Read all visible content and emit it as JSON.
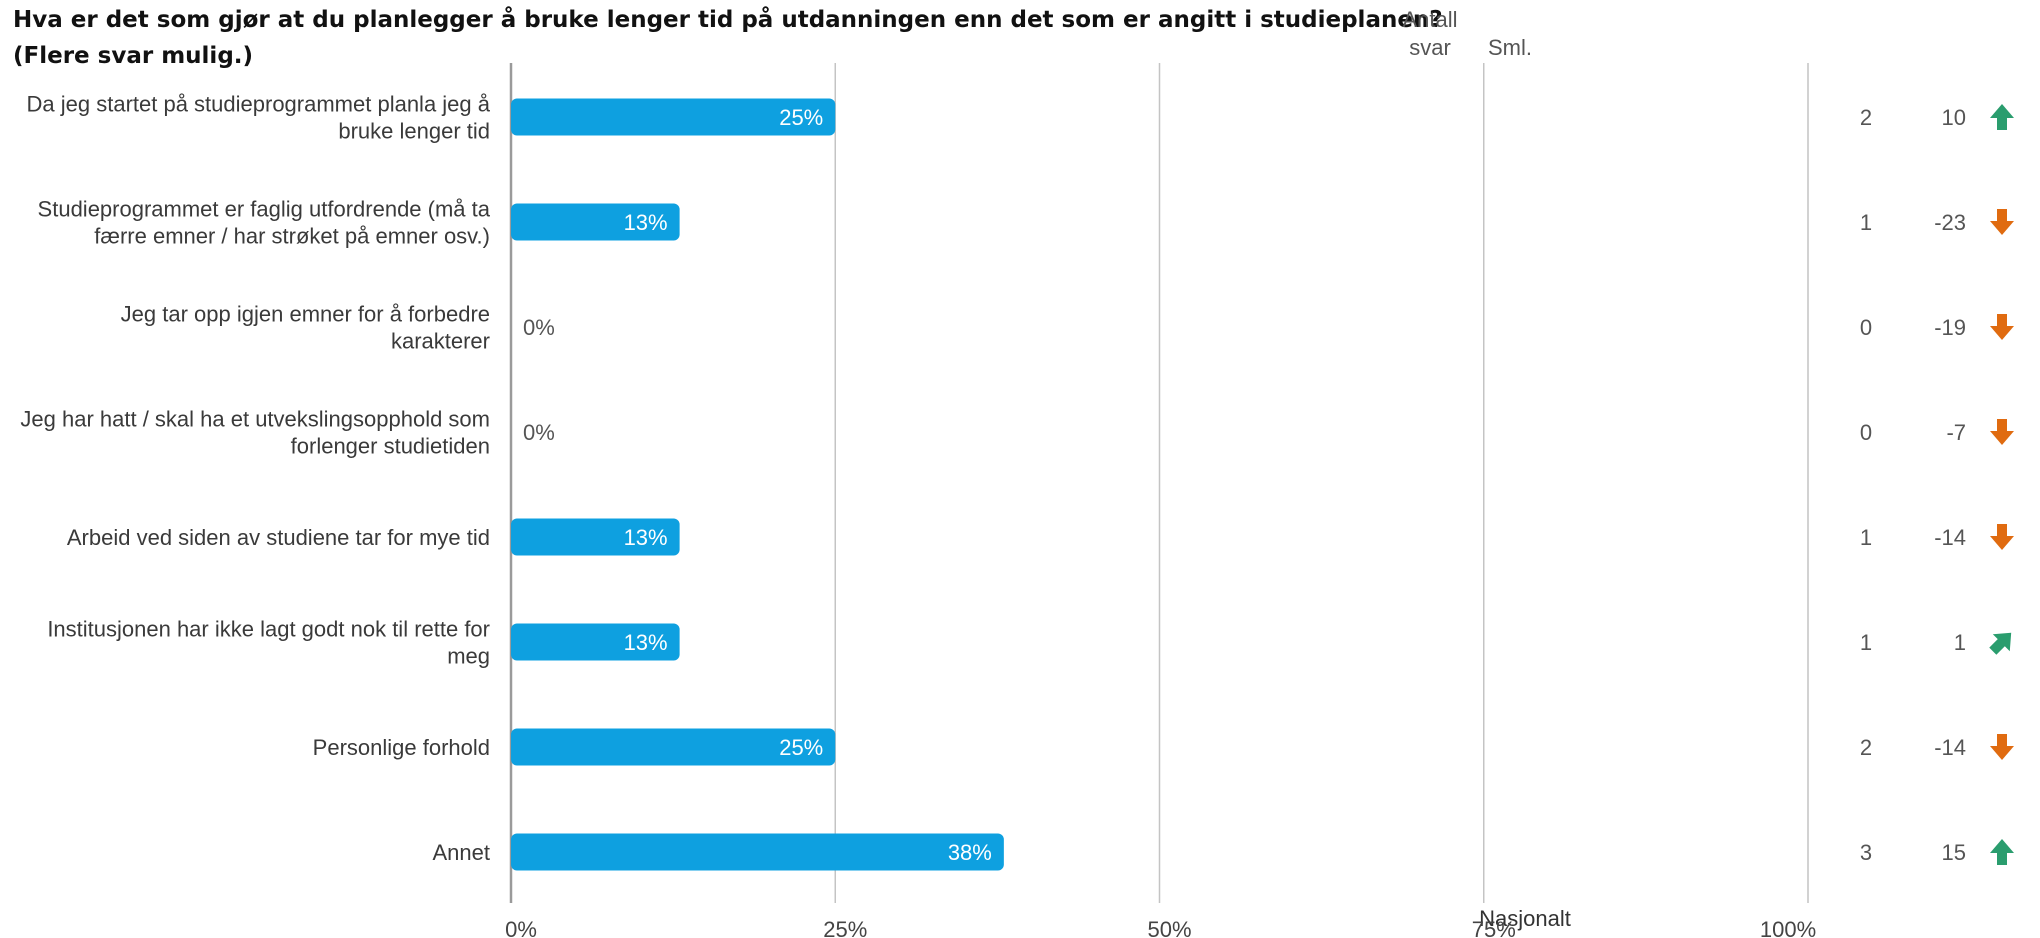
{
  "chart_data": {
    "type": "bar",
    "orientation": "horizontal",
    "title": "Hva er det som gjør at du planlegger å bruke lenger tid på utdanningen enn det som er angitt i studieplanen? (Flere svar mulig.)",
    "categories": [
      "Da jeg startet på studieprogrammet planla jeg å bruke lenger tid",
      "Studieprogrammet er faglig utfordrende (må ta færre emner / har strøket på emner osv.)",
      "Jeg tar opp igjen emner for å forbedre karakterer",
      "Jeg har hatt / skal ha et utvekslingsopphold som forlenger studietiden",
      "Arbeid ved siden av studiene tar for mye tid",
      "Institusjonen har ikke lagt godt nok til rette for meg",
      "Personlige forhold",
      "Annet"
    ],
    "values": [
      25,
      13,
      0,
      0,
      13,
      13,
      25,
      38
    ],
    "value_labels": [
      "25%",
      "13%",
      "0%",
      "0%",
      "13%",
      "13%",
      "25%",
      "38%"
    ],
    "xlim": [
      0,
      100
    ],
    "x_ticks": [
      "0%",
      "25%",
      "50%",
      "75%",
      "100%"
    ],
    "grid": true,
    "bar_color": "#0ea0e0",
    "columns": {
      "count_header_line1": "Antall",
      "count_header_line2": "svar",
      "compare_header": "Sml.",
      "compare_footer": "Nasjonalt"
    },
    "counts": [
      "2",
      "1",
      "0",
      "0",
      "1",
      "1",
      "2",
      "3"
    ],
    "comparison": [
      "10",
      "-23",
      "-19",
      "-7",
      "-14",
      "1",
      "-14",
      "15"
    ],
    "comparison_icons": [
      "arrow-up-icon",
      "arrow-down-icon",
      "arrow-down-icon",
      "arrow-down-icon",
      "arrow-down-icon",
      "arrow-up-right-icon",
      "arrow-down-icon",
      "arrow-up-icon"
    ],
    "colors": {
      "up": "#2a9d6e",
      "down": "#e06b10"
    }
  }
}
